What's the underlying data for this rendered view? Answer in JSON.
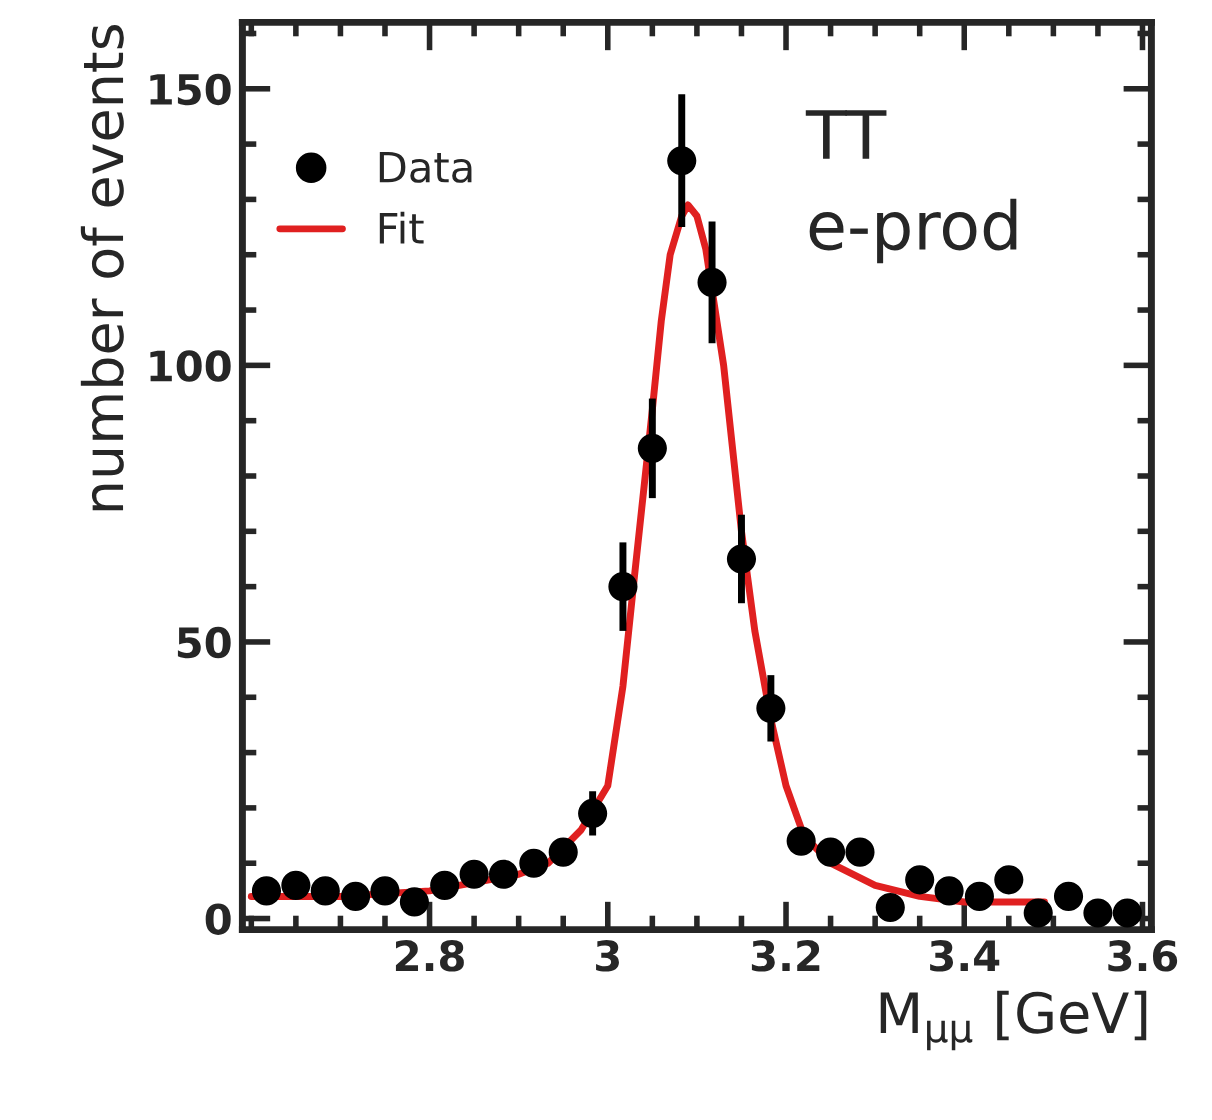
{
  "chart_data": {
    "type": "scatter",
    "xlabel": "M$_{μμ}$ [GeV]",
    "ylabel": "number of events",
    "annotations": [
      "TT",
      "e-prod"
    ],
    "xlim": [
      2.59,
      3.61
    ],
    "xticks": [
      2.8,
      3,
      3.2,
      3.4,
      3.6
    ],
    "ylim": [
      -2,
      162
    ],
    "yticks": [
      0,
      50,
      100,
      150
    ],
    "legend": "upper left",
    "grid": false,
    "series": [
      {
        "name": "Data",
        "marker": "circle",
        "color": "#000000",
        "x": [
          2.617,
          2.65,
          2.683,
          2.717,
          2.75,
          2.783,
          2.817,
          2.85,
          2.883,
          2.917,
          2.95,
          2.983,
          3.017,
          3.05,
          3.083,
          3.117,
          3.15,
          3.183,
          3.217,
          3.25,
          3.283,
          3.317,
          3.35,
          3.383,
          3.417,
          3.45,
          3.483,
          3.517,
          3.55,
          3.583
        ],
        "values": [
          5,
          6,
          5,
          4,
          5,
          3,
          6,
          8,
          8,
          10,
          12,
          19,
          60,
          85,
          137,
          115,
          65,
          38,
          14,
          12,
          12,
          2,
          7,
          5,
          4,
          7,
          1,
          4,
          1,
          1
        ],
        "errors": [
          null,
          null,
          null,
          null,
          null,
          null,
          null,
          null,
          null,
          null,
          null,
          4,
          8,
          9,
          12,
          11,
          8,
          6,
          null,
          null,
          null,
          null,
          null,
          null,
          null,
          null,
          null,
          null,
          null,
          null
        ]
      },
      {
        "name": "Fit",
        "type": "line",
        "marker": "none",
        "line_style": "solid",
        "color": "#e02020",
        "x": [
          2.6,
          2.7,
          2.8,
          2.9,
          2.933,
          2.97,
          3.0,
          3.017,
          3.03,
          3.05,
          3.06,
          3.07,
          3.083,
          3.09,
          3.1,
          3.11,
          3.13,
          3.14,
          3.15,
          3.165,
          3.183,
          3.2,
          3.22,
          3.25,
          3.3,
          3.35,
          3.4,
          3.45,
          3.49
        ],
        "values": [
          4,
          4,
          5,
          8,
          10,
          16,
          24,
          42,
          62,
          92,
          108,
          120,
          127,
          129,
          127,
          121,
          100,
          85,
          70,
          52,
          36,
          24,
          15,
          10,
          6,
          4,
          3,
          3,
          3
        ]
      }
    ]
  }
}
